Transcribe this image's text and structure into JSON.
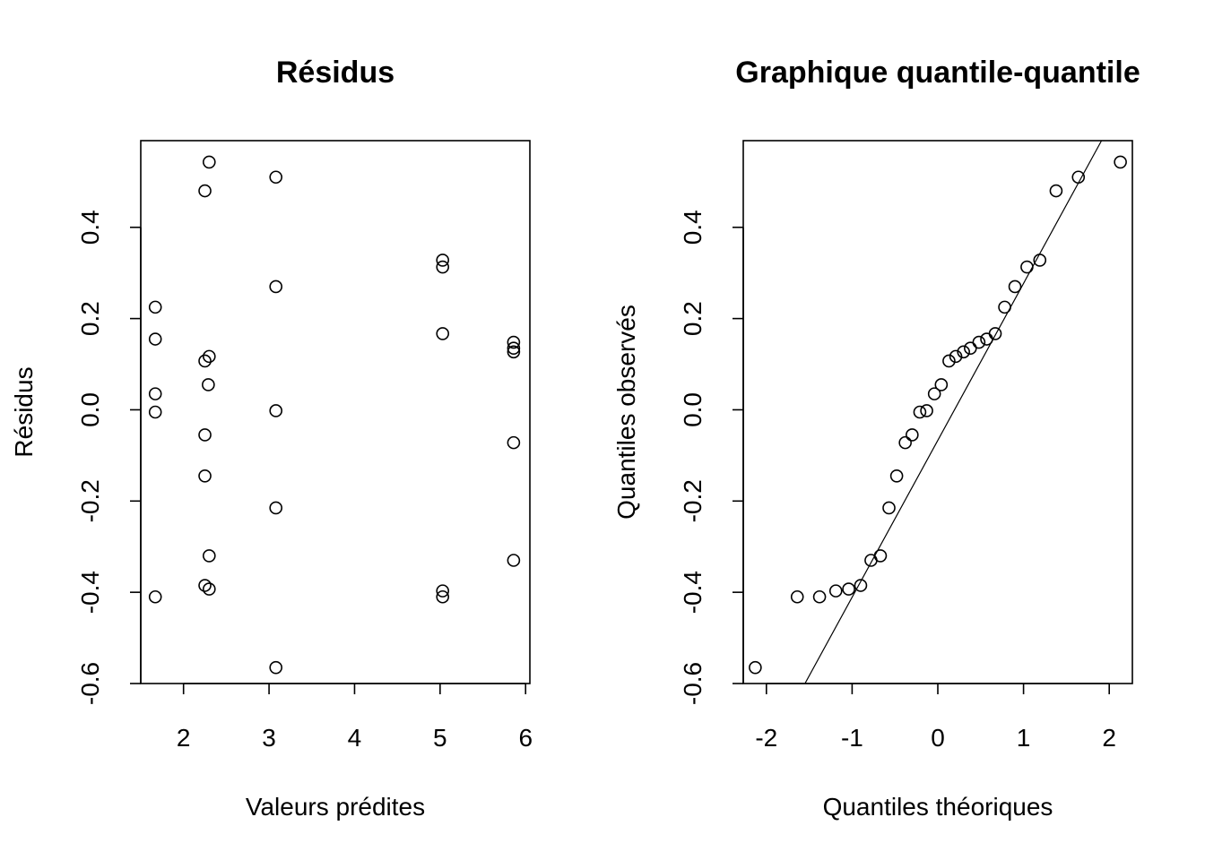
{
  "chart_data": [
    {
      "type": "scatter",
      "title": "Résidus",
      "xlabel": "Valeurs prédites",
      "ylabel": "Résidus",
      "xlim": [
        1.5,
        6.05
      ],
      "ylim": [
        -0.6,
        0.59
      ],
      "xticks": [
        "2",
        "3",
        "4",
        "5",
        "6"
      ],
      "yticks": [
        "-0.6",
        "-0.4",
        "-0.2",
        "0.0",
        "0.2",
        "0.4"
      ],
      "grid": false,
      "points": [
        {
          "x": 1.67,
          "y": 0.225
        },
        {
          "x": 1.67,
          "y": 0.155
        },
        {
          "x": 1.67,
          "y": 0.035
        },
        {
          "x": 1.67,
          "y": -0.005
        },
        {
          "x": 1.67,
          "y": -0.41
        },
        {
          "x": 2.25,
          "y": 0.48
        },
        {
          "x": 2.3,
          "y": 0.543
        },
        {
          "x": 2.25,
          "y": 0.107
        },
        {
          "x": 2.3,
          "y": 0.117
        },
        {
          "x": 2.29,
          "y": 0.055
        },
        {
          "x": 2.25,
          "y": -0.055
        },
        {
          "x": 2.25,
          "y": -0.145
        },
        {
          "x": 2.3,
          "y": -0.32
        },
        {
          "x": 2.25,
          "y": -0.385
        },
        {
          "x": 2.3,
          "y": -0.393
        },
        {
          "x": 3.08,
          "y": 0.51
        },
        {
          "x": 3.08,
          "y": 0.27
        },
        {
          "x": 3.08,
          "y": -0.002
        },
        {
          "x": 3.08,
          "y": -0.215
        },
        {
          "x": 3.08,
          "y": -0.565
        },
        {
          "x": 5.03,
          "y": 0.328
        },
        {
          "x": 5.03,
          "y": 0.313
        },
        {
          "x": 5.03,
          "y": 0.167
        },
        {
          "x": 5.03,
          "y": -0.397
        },
        {
          "x": 5.03,
          "y": -0.41
        },
        {
          "x": 5.86,
          "y": 0.148
        },
        {
          "x": 5.86,
          "y": 0.135
        },
        {
          "x": 5.86,
          "y": 0.127
        },
        {
          "x": 5.86,
          "y": -0.072
        },
        {
          "x": 5.86,
          "y": -0.33
        }
      ]
    },
    {
      "type": "scatter",
      "title": "Graphique quantile-quantile",
      "xlabel": "Quantiles théoriques",
      "ylabel": "Quantiles observés",
      "xlim": [
        -2.27,
        2.27
      ],
      "ylim": [
        -0.6,
        0.59
      ],
      "xticks": [
        "-2",
        "-1",
        "0",
        "1",
        "2"
      ],
      "yticks": [
        "-0.6",
        "-0.4",
        "-0.2",
        "0.0",
        "0.2",
        "0.4"
      ],
      "grid": false,
      "points": [
        {
          "x": -2.13,
          "y": -0.565
        },
        {
          "x": -1.64,
          "y": -0.41
        },
        {
          "x": -1.38,
          "y": -0.41
        },
        {
          "x": -1.19,
          "y": -0.397
        },
        {
          "x": -1.04,
          "y": -0.393
        },
        {
          "x": -0.9,
          "y": -0.385
        },
        {
          "x": -0.78,
          "y": -0.33
        },
        {
          "x": -0.67,
          "y": -0.32
        },
        {
          "x": -0.57,
          "y": -0.215
        },
        {
          "x": -0.48,
          "y": -0.145
        },
        {
          "x": -0.38,
          "y": -0.072
        },
        {
          "x": -0.3,
          "y": -0.055
        },
        {
          "x": -0.21,
          "y": -0.005
        },
        {
          "x": -0.13,
          "y": -0.002
        },
        {
          "x": -0.04,
          "y": 0.035
        },
        {
          "x": 0.04,
          "y": 0.055
        },
        {
          "x": 0.13,
          "y": 0.107
        },
        {
          "x": 0.21,
          "y": 0.117
        },
        {
          "x": 0.3,
          "y": 0.127
        },
        {
          "x": 0.38,
          "y": 0.135
        },
        {
          "x": 0.48,
          "y": 0.148
        },
        {
          "x": 0.57,
          "y": 0.155
        },
        {
          "x": 0.67,
          "y": 0.167
        },
        {
          "x": 0.78,
          "y": 0.225
        },
        {
          "x": 0.9,
          "y": 0.27
        },
        {
          "x": 1.04,
          "y": 0.313
        },
        {
          "x": 1.19,
          "y": 0.328
        },
        {
          "x": 1.38,
          "y": 0.48
        },
        {
          "x": 1.64,
          "y": 0.51
        },
        {
          "x": 2.13,
          "y": 0.543
        }
      ],
      "reference_line": {
        "x1": -1.55,
        "y1": -0.6,
        "x2": 1.91,
        "y2": 0.59
      }
    }
  ]
}
